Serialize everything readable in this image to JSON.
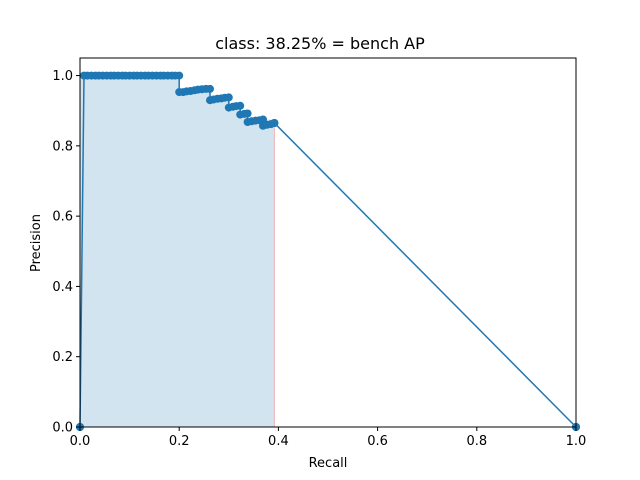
{
  "chart_data": {
    "type": "area",
    "title": "class: 38.25% = bench AP",
    "xlabel": "Recall",
    "ylabel": "Precision",
    "xlim": [
      0,
      1
    ],
    "ylim": [
      0,
      1.05
    ],
    "xticks": [
      0.0,
      0.2,
      0.4,
      0.6,
      0.8,
      1.0
    ],
    "yticks": [
      0.0,
      0.2,
      0.4,
      0.6,
      0.8,
      1.0
    ],
    "xtick_labels": [
      "0.0",
      "0.2",
      "0.4",
      "0.6",
      "0.8",
      "1.0"
    ],
    "ytick_labels": [
      "0.0",
      "0.2",
      "0.4",
      "0.6",
      "0.8",
      "1.0"
    ],
    "grid": false,
    "colors": {
      "line": "#1f77b4",
      "fill": "#1f77b4",
      "fill_alpha": 0.2,
      "edge": "#ff0000"
    },
    "pr_curve": {
      "recall": [
        0.0,
        0.0,
        0.008,
        0.015,
        0.023,
        0.031,
        0.038,
        0.046,
        0.054,
        0.062,
        0.069,
        0.077,
        0.085,
        0.092,
        0.1,
        0.108,
        0.115,
        0.123,
        0.131,
        0.138,
        0.146,
        0.154,
        0.162,
        0.169,
        0.177,
        0.185,
        0.192,
        0.2,
        0.2,
        0.208,
        0.215,
        0.223,
        0.231,
        0.238,
        0.246,
        0.254,
        0.262,
        0.262,
        0.269,
        0.277,
        0.285,
        0.292,
        0.3,
        0.3,
        0.308,
        0.315,
        0.323,
        0.323,
        0.331,
        0.338,
        0.338,
        0.346,
        0.354,
        0.362,
        0.369,
        0.369,
        0.377,
        0.385,
        0.392,
        0.392,
        1.0,
        1.0
      ],
      "precision": [
        0.0,
        0.0,
        1.0,
        1.0,
        1.0,
        1.0,
        1.0,
        1.0,
        1.0,
        1.0,
        1.0,
        1.0,
        1.0,
        1.0,
        1.0,
        1.0,
        1.0,
        1.0,
        1.0,
        1.0,
        1.0,
        1.0,
        1.0,
        1.0,
        1.0,
        1.0,
        1.0,
        1.0,
        0.953,
        0.953,
        0.955,
        0.956,
        0.958,
        0.96,
        0.961,
        0.962,
        0.962,
        0.93,
        0.932,
        0.934,
        0.935,
        0.937,
        0.938,
        0.909,
        0.911,
        0.913,
        0.914,
        0.889,
        0.891,
        0.892,
        0.868,
        0.87,
        0.872,
        0.873,
        0.875,
        0.857,
        0.86,
        0.862,
        0.865,
        0.865,
        0.0,
        0.0
      ]
    },
    "ap_area": {
      "recall": [
        0.0,
        0.0,
        0.008,
        0.2,
        0.2,
        0.262,
        0.262,
        0.3,
        0.3,
        0.323,
        0.323,
        0.338,
        0.338,
        0.392,
        0.392,
        0.392
      ],
      "precision": [
        0.0,
        1.0,
        1.0,
        1.0,
        0.962,
        0.962,
        0.938,
        0.938,
        0.914,
        0.914,
        0.892,
        0.892,
        0.875,
        0.875,
        0.865,
        0.0
      ]
    }
  }
}
